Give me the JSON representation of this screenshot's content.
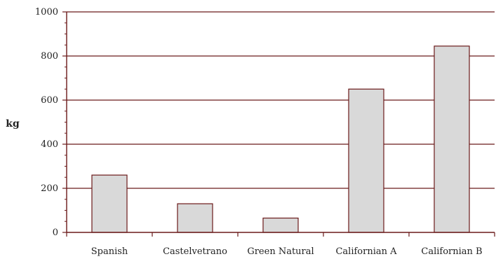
{
  "chart_data": {
    "type": "bar",
    "categories": [
      "Spanish",
      "Castelvetrano",
      "Green Natural",
      "Californian A",
      "Californian B"
    ],
    "values": [
      260,
      130,
      65,
      650,
      845
    ],
    "ylabel": "kg",
    "xlabel": "",
    "ylim": [
      0,
      1000
    ],
    "yticks": [
      0,
      200,
      400,
      600,
      800,
      1000
    ],
    "grid": true,
    "bar_color": "#d9d9d9",
    "bar_edge_color": "#6b1a1a",
    "axis_color": "#6b1a1a"
  }
}
